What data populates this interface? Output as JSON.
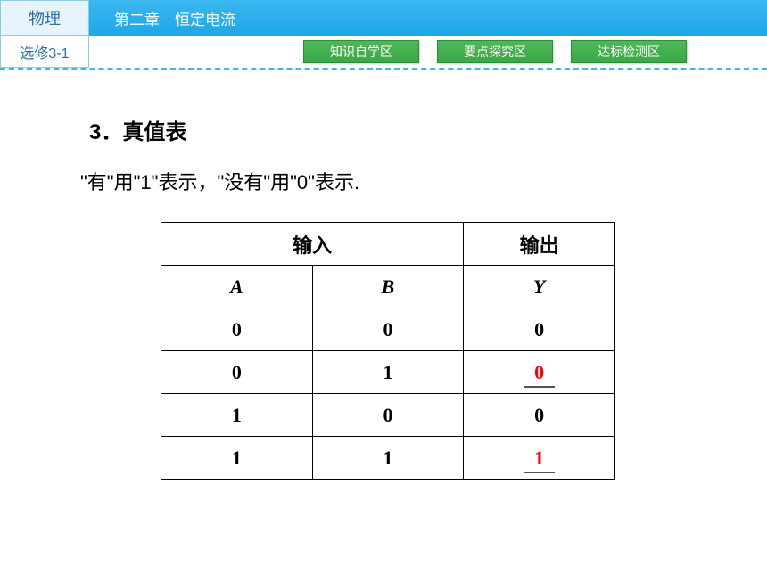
{
  "header": {
    "subject": "物理",
    "chapter_title": "第二章　恒定电流",
    "book_level": "选修3-1"
  },
  "nav_tabs": [
    {
      "label": "知识自学区"
    },
    {
      "label": "要点探究区"
    },
    {
      "label": "达标检测区"
    }
  ],
  "section": {
    "title": "3．真值表",
    "description": "\"有\"用\"1\"表示，\"没有\"用\"0\"表示."
  },
  "truth_table": {
    "type": "table",
    "input_header": "输入",
    "output_header": "输出",
    "columns": [
      "A",
      "B",
      "Y"
    ],
    "rows": [
      {
        "A": "0",
        "B": "0",
        "Y": "0",
        "highlight": false
      },
      {
        "A": "0",
        "B": "1",
        "Y": "0",
        "highlight": true
      },
      {
        "A": "1",
        "B": "0",
        "Y": "0",
        "highlight": false
      },
      {
        "A": "1",
        "B": "1",
        "Y": "1",
        "highlight": true
      }
    ],
    "colors": {
      "border": "#000000",
      "highlight_text": "#ff0000",
      "normal_text": "#000000",
      "underline": "#555555"
    }
  },
  "colors": {
    "header_bg_start": "#3bb6f0",
    "header_bg_end": "#1ca8e8",
    "subject_bg": "#e8f4fb",
    "subject_border": "#8ec9e8",
    "subject_text": "#2a6fa8",
    "tab_bg_start": "#4db858",
    "tab_bg_end": "#3aa845",
    "tab_border": "#2d8a37",
    "divider": "#3bb6f0"
  }
}
